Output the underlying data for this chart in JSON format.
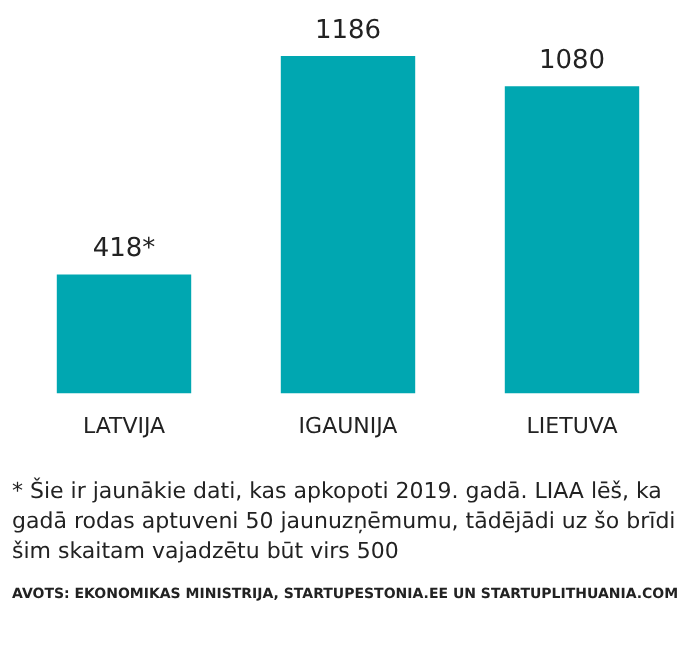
{
  "chart_data": {
    "type": "bar",
    "tick_labels": "x",
    "categories": [
      "LATVIJA",
      "IGAUNIJA",
      "LIETUVA"
    ],
    "values": [
      418,
      1186,
      1080
    ],
    "value_labels": [
      "418*",
      "1186",
      "1080"
    ],
    "color": "#00a7b1",
    "grid": false,
    "legend": false,
    "annotations": [
      "* Šie ir jaunākie dati, kas apkopoti 2019. gadā. LIAA lēš, ka gadā rodas aptuveni 50 jaunuzņēmumu, tādējādi uz šo brīdi šim skaitam vajadzētu būt virs 500",
      "AVOTS: EKONOMIKAS MINISTRIJA, STARTUPESTONIA.EE UN STARTUPLITHUANIA.COM"
    ]
  }
}
